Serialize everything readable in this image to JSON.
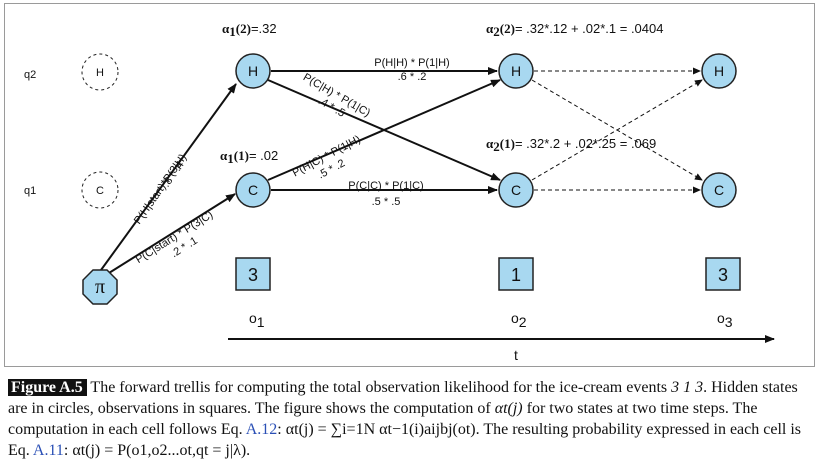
{
  "diagram": {
    "states": {
      "q2": "q2",
      "q1": "q1",
      "H": "H",
      "C": "C",
      "pi": "π"
    },
    "alphas": {
      "a1_2_label": "α1(2)",
      "a1_2_value": "=.32",
      "a1_1_label": "α1(1)",
      "a1_1_value": "= .02",
      "a2_2_label": "α2(2)",
      "a2_2_value": "= .32*.12 + .02*.1 = .0404",
      "a2_1_label": "α2(1)",
      "a2_1_value": "= .32*.2 + .02*.25 = .069"
    },
    "edges": {
      "start_h_top": "P(H|start)*P(3|H)",
      "start_h_bottom": ".8 * .4",
      "start_c_top": "P(C|start) * P(3|C)",
      "start_c_bottom": ".2 * .1",
      "hh_top": "P(H|H) * P(1|H)",
      "hh_bottom": ".6 * .2",
      "hc_top": "P(C|H) * P(1|C)",
      "hc_bottom": ".4 * .5",
      "ch_top": "P(H|C) * P(1|H)",
      "ch_bottom": ".5 * .2",
      "cc_top": "P(C|C) * P(1|C)",
      "cc_bottom": ".5 * .5"
    },
    "observations": [
      "3",
      "1",
      "3"
    ],
    "obs_labels": [
      "o1",
      "o2",
      "o3"
    ],
    "time_axis_label": "t",
    "colors": {
      "node_fill": "#a8d8f0",
      "node_stroke": "#222222",
      "frame": "#9a9a9a"
    }
  },
  "caption": {
    "figure_label": "Figure A.5",
    "part1": "The forward trellis for computing the total observation likelihood for the ice-cream events",
    "events": "3 1 3",
    "part2": ". Hidden states are in circles, observations in squares. The figure shows the computation of",
    "alpha_expr": "αt(j)",
    "part3": "for two states at two time steps. The computation in each cell follows Eq.",
    "eq1_ref": "A.12",
    "eq1_expr": ": αt(j) = ∑i=1N αt−1(i)aijbj(ot).",
    "part4": "The resulting probability expressed in each cell is Eq.",
    "eq2_ref": "A.11",
    "eq2_expr": ": αt(j) = P(o1,o2...ot,qt = j|λ)."
  }
}
